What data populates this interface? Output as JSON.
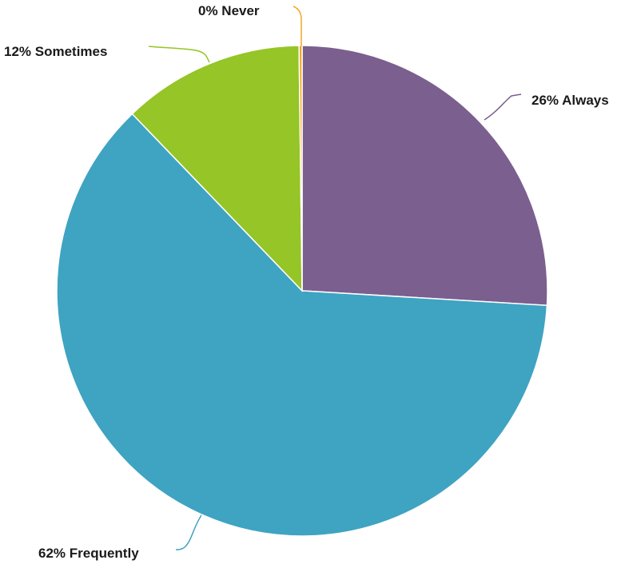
{
  "chart_data": {
    "type": "pie",
    "title": "",
    "slices": [
      {
        "label": "Always",
        "value": 26,
        "color": "#7B5F8F",
        "display": "26% Always"
      },
      {
        "label": "Frequently",
        "value": 62,
        "color": "#3FA3C2",
        "display": "62% Frequently"
      },
      {
        "label": "Sometimes",
        "value": 12,
        "color": "#95C526",
        "display": "12% Sometimes"
      },
      {
        "label": "Never",
        "value": 0.2,
        "color": "#F5A623",
        "display": "0% Never"
      }
    ],
    "start_angle": "12 o'clock",
    "direction": "clockwise",
    "legend": "none"
  }
}
